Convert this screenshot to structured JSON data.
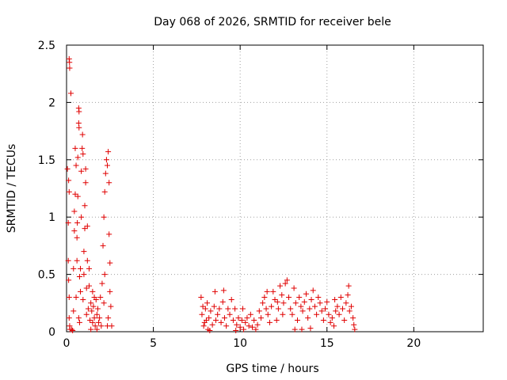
{
  "chart_data": {
    "type": "scatter",
    "title": "Day 068 of 2026, SRMTID for receiver bele",
    "xlabel": "GPS time / hours",
    "ylabel": "SRMTID / TECUs",
    "xlim": [
      0,
      24
    ],
    "ylim": [
      0,
      2.5
    ],
    "x_ticks": [
      0,
      5,
      10,
      15,
      20
    ],
    "x_tick_labels": [
      "0",
      "5",
      "10",
      "15",
      "20"
    ],
    "y_ticks": [
      0,
      0.5,
      1,
      1.5,
      2,
      2.5
    ],
    "y_tick_labels": [
      "0",
      "0.5",
      "1",
      "1.5",
      "2",
      "2.5"
    ],
    "grid": true,
    "marker": "+",
    "color": "#e00000",
    "series": [
      {
        "name": "SRMTID",
        "points": [
          [
            0.05,
            1.42
          ],
          [
            0.1,
            0.95
          ],
          [
            0.1,
            0.62
          ],
          [
            0.12,
            0.45
          ],
          [
            0.15,
            0.3
          ],
          [
            0.15,
            0.12
          ],
          [
            0.18,
            0.05
          ],
          [
            0.2,
            0.02
          ],
          [
            0.15,
            2.38
          ],
          [
            0.17,
            2.35
          ],
          [
            0.18,
            2.3
          ],
          [
            0.25,
            2.08
          ],
          [
            0.12,
            1.32
          ],
          [
            0.15,
            1.22
          ],
          [
            0.3,
            0.02
          ],
          [
            0.35,
            0.01
          ],
          [
            0.4,
            0.18
          ],
          [
            0.4,
            0.55
          ],
          [
            0.45,
            0.88
          ],
          [
            0.45,
            1.05
          ],
          [
            0.5,
            1.2
          ],
          [
            0.5,
            1.6
          ],
          [
            0.55,
            1.45
          ],
          [
            0.55,
            0.3
          ],
          [
            0.6,
            0.62
          ],
          [
            0.6,
            0.82
          ],
          [
            0.62,
            0.95
          ],
          [
            0.65,
            1.18
          ],
          [
            0.65,
            1.52
          ],
          [
            0.7,
            1.95
          ],
          [
            0.72,
            1.92
          ],
          [
            0.7,
            1.82
          ],
          [
            0.72,
            1.78
          ],
          [
            0.7,
            0.12
          ],
          [
            0.75,
            0.48
          ],
          [
            0.75,
            0.08
          ],
          [
            0.8,
            0.35
          ],
          [
            0.8,
            0.55
          ],
          [
            0.85,
            1.0
          ],
          [
            0.85,
            1.4
          ],
          [
            0.9,
            1.6
          ],
          [
            0.92,
            1.72
          ],
          [
            0.95,
            1.55
          ],
          [
            0.95,
            0.28
          ],
          [
            1.0,
            0.5
          ],
          [
            1.0,
            0.7
          ],
          [
            1.05,
            0.9
          ],
          [
            1.05,
            1.1
          ],
          [
            1.1,
            1.3
          ],
          [
            1.1,
            1.42
          ],
          [
            1.15,
            0.38
          ],
          [
            1.15,
            0.15
          ],
          [
            1.2,
            0.62
          ],
          [
            1.2,
            0.92
          ],
          [
            1.25,
            0.2
          ],
          [
            1.3,
            0.4
          ],
          [
            1.35,
            0.1
          ],
          [
            1.4,
            0.25
          ],
          [
            1.45,
            0.18
          ],
          [
            1.5,
            0.08
          ],
          [
            1.5,
            0.35
          ],
          [
            1.55,
            0.22
          ],
          [
            1.6,
            0.12
          ],
          [
            1.65,
            0.05
          ],
          [
            1.7,
            0.28
          ],
          [
            1.75,
            0.15
          ],
          [
            1.8,
            0.2
          ],
          [
            1.85,
            0.08
          ],
          [
            1.9,
            0.12
          ],
          [
            1.95,
            0.3
          ],
          [
            2.0,
            0.05
          ],
          [
            2.05,
            0.42
          ],
          [
            2.1,
            0.75
          ],
          [
            2.15,
            1.0
          ],
          [
            2.2,
            1.22
          ],
          [
            2.25,
            1.38
          ],
          [
            2.3,
            1.5
          ],
          [
            2.35,
            1.45
          ],
          [
            2.4,
            1.57
          ],
          [
            2.45,
            1.3
          ],
          [
            2.45,
            0.85
          ],
          [
            2.5,
            0.6
          ],
          [
            2.5,
            0.35
          ],
          [
            2.4,
            0.12
          ],
          [
            2.35,
            0.05
          ],
          [
            2.2,
            0.5
          ],
          [
            2.15,
            0.25
          ],
          [
            2.55,
            0.22
          ],
          [
            2.6,
            0.05
          ],
          [
            1.3,
            0.55
          ],
          [
            1.4,
            0.02
          ],
          [
            1.6,
            0.3
          ],
          [
            1.75,
            0.02
          ],
          [
            7.75,
            0.3
          ],
          [
            7.8,
            0.15
          ],
          [
            7.85,
            0.22
          ],
          [
            7.9,
            0.05
          ],
          [
            7.95,
            0.08
          ],
          [
            8.0,
            0.2
          ],
          [
            8.05,
            0.1
          ],
          [
            8.1,
            0.25
          ],
          [
            8.15,
            0.02
          ],
          [
            8.2,
            0.12
          ],
          [
            8.3,
            0.18
          ],
          [
            8.4,
            0.06
          ],
          [
            8.5,
            0.22
          ],
          [
            8.6,
            0.1
          ],
          [
            8.7,
            0.15
          ],
          [
            8.8,
            0.2
          ],
          [
            8.9,
            0.08
          ],
          [
            9.0,
            0.26
          ],
          [
            9.05,
            0.36
          ],
          [
            9.1,
            0.12
          ],
          [
            9.2,
            0.05
          ],
          [
            9.3,
            0.2
          ],
          [
            9.4,
            0.15
          ],
          [
            9.5,
            0.28
          ],
          [
            9.6,
            0.1
          ],
          [
            9.7,
            0.2
          ],
          [
            9.8,
            0.06
          ],
          [
            9.9,
            0.12
          ],
          [
            10.0,
            0.04
          ],
          [
            10.1,
            0.1
          ],
          [
            10.2,
            0.02
          ],
          [
            10.3,
            0.08
          ],
          [
            10.4,
            0.12
          ],
          [
            10.5,
            0.05
          ],
          [
            10.6,
            0.15
          ],
          [
            10.7,
            0.04
          ],
          [
            10.8,
            0.1
          ],
          [
            10.9,
            0.02
          ],
          [
            11.0,
            0.06
          ],
          [
            11.1,
            0.18
          ],
          [
            11.2,
            0.12
          ],
          [
            11.3,
            0.25
          ],
          [
            11.4,
            0.3
          ],
          [
            11.5,
            0.2
          ],
          [
            11.6,
            0.15
          ],
          [
            11.7,
            0.08
          ],
          [
            11.8,
            0.22
          ],
          [
            11.9,
            0.35
          ],
          [
            12.0,
            0.28
          ],
          [
            12.1,
            0.1
          ],
          [
            12.2,
            0.2
          ],
          [
            12.3,
            0.4
          ],
          [
            12.4,
            0.32
          ],
          [
            12.5,
            0.25
          ],
          [
            12.6,
            0.42
          ],
          [
            12.7,
            0.45
          ],
          [
            12.8,
            0.3
          ],
          [
            12.9,
            0.2
          ],
          [
            13.0,
            0.15
          ],
          [
            13.1,
            0.38
          ],
          [
            13.2,
            0.25
          ],
          [
            13.3,
            0.1
          ],
          [
            13.4,
            0.3
          ],
          [
            13.5,
            0.22
          ],
          [
            13.6,
            0.18
          ],
          [
            13.7,
            0.26
          ],
          [
            13.8,
            0.33
          ],
          [
            13.9,
            0.12
          ],
          [
            14.0,
            0.2
          ],
          [
            14.1,
            0.28
          ],
          [
            14.2,
            0.36
          ],
          [
            14.3,
            0.22
          ],
          [
            14.4,
            0.15
          ],
          [
            14.5,
            0.3
          ],
          [
            14.6,
            0.25
          ],
          [
            14.7,
            0.18
          ],
          [
            14.8,
            0.1
          ],
          [
            14.9,
            0.2
          ],
          [
            15.0,
            0.26
          ],
          [
            15.1,
            0.15
          ],
          [
            15.2,
            0.08
          ],
          [
            15.3,
            0.12
          ],
          [
            15.4,
            0.05
          ],
          [
            15.5,
            0.18
          ],
          [
            15.6,
            0.22
          ],
          [
            15.7,
            0.15
          ],
          [
            15.8,
            0.3
          ],
          [
            15.9,
            0.2
          ],
          [
            16.0,
            0.1
          ],
          [
            16.1,
            0.25
          ],
          [
            16.2,
            0.32
          ],
          [
            16.3,
            0.18
          ],
          [
            16.4,
            0.22
          ],
          [
            16.5,
            0.12
          ],
          [
            16.55,
            0.06
          ],
          [
            16.6,
            0.02
          ],
          [
            8.25,
            0.01
          ],
          [
            9.75,
            0.01
          ],
          [
            13.15,
            0.02
          ],
          [
            14.05,
            0.03
          ],
          [
            12.15,
            0.26
          ],
          [
            12.45,
            0.15
          ],
          [
            11.55,
            0.35
          ],
          [
            10.15,
            0.2
          ],
          [
            15.45,
            0.28
          ],
          [
            16.25,
            0.4
          ],
          [
            8.55,
            0.35
          ],
          [
            13.55,
            0.02
          ]
        ]
      }
    ]
  }
}
